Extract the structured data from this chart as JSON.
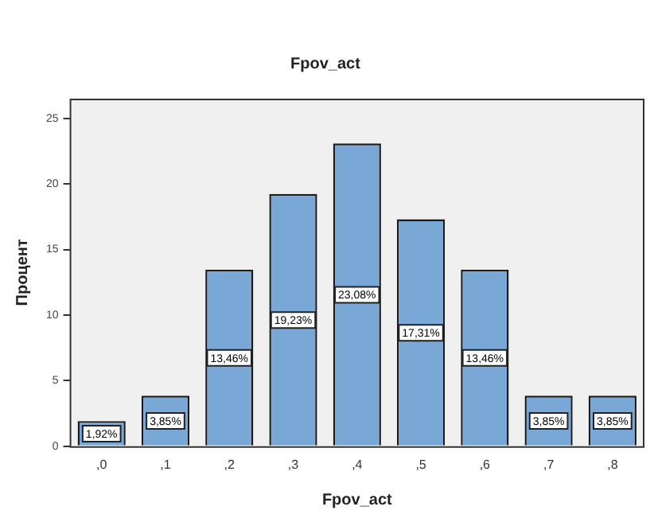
{
  "chart_data": {
    "type": "bar",
    "title": "Fpov_act",
    "xlabel": "Fpov_act",
    "ylabel": "Процент",
    "categories": [
      ",0",
      ",1",
      ",2",
      ",3",
      ",4",
      ",5",
      ",6",
      ",7",
      ",8"
    ],
    "values": [
      1.92,
      3.85,
      13.46,
      19.23,
      23.08,
      17.31,
      13.46,
      3.85,
      3.85
    ],
    "value_labels": [
      "1,92%",
      "3,85%",
      "13,46%",
      "19,23%",
      "23,08%",
      "17,31%",
      "13,46%",
      "3,85%",
      "3,85%"
    ],
    "color": "#79a7d6",
    "ylim": [
      0,
      26.5
    ],
    "yticks": [
      0,
      5,
      10,
      15,
      20,
      25
    ],
    "grid": false,
    "legend": false
  }
}
